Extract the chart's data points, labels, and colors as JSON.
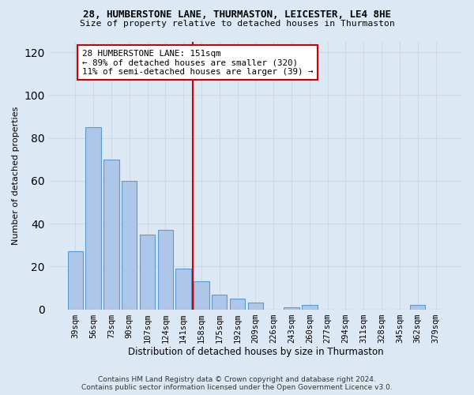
{
  "title1": "28, HUMBERSTONE LANE, THURMASTON, LEICESTER, LE4 8HE",
  "title2": "Size of property relative to detached houses in Thurmaston",
  "xlabel": "Distribution of detached houses by size in Thurmaston",
  "ylabel": "Number of detached properties",
  "categories": [
    "39sqm",
    "56sqm",
    "73sqm",
    "90sqm",
    "107sqm",
    "124sqm",
    "141sqm",
    "158sqm",
    "175sqm",
    "192sqm",
    "209sqm",
    "226sqm",
    "243sqm",
    "260sqm",
    "277sqm",
    "294sqm",
    "311sqm",
    "328sqm",
    "345sqm",
    "362sqm",
    "379sqm"
  ],
  "values": [
    27,
    85,
    70,
    60,
    35,
    37,
    19,
    13,
    7,
    5,
    3,
    0,
    1,
    2,
    0,
    0,
    0,
    0,
    0,
    2,
    0
  ],
  "bar_color": "#aec6e8",
  "bar_edgecolor": "#5b9bd5",
  "property_line_index": 7,
  "property_label": "28 HUMBERSTONE LANE: 151sqm",
  "annotation_line1": "← 89% of detached houses are smaller (320)",
  "annotation_line2": "11% of semi-detached houses are larger (39) →",
  "annotation_box_facecolor": "#ffffff",
  "annotation_box_edgecolor": "#cc0000",
  "vline_color": "#cc0000",
  "ylim": [
    0,
    125
  ],
  "yticks": [
    0,
    20,
    40,
    60,
    80,
    100,
    120
  ],
  "grid_color": "#d0d8e8",
  "background_color": "#dde8f5",
  "footnote1": "Contains HM Land Registry data © Crown copyright and database right 2024.",
  "footnote2": "Contains public sector information licensed under the Open Government Licence v3.0."
}
